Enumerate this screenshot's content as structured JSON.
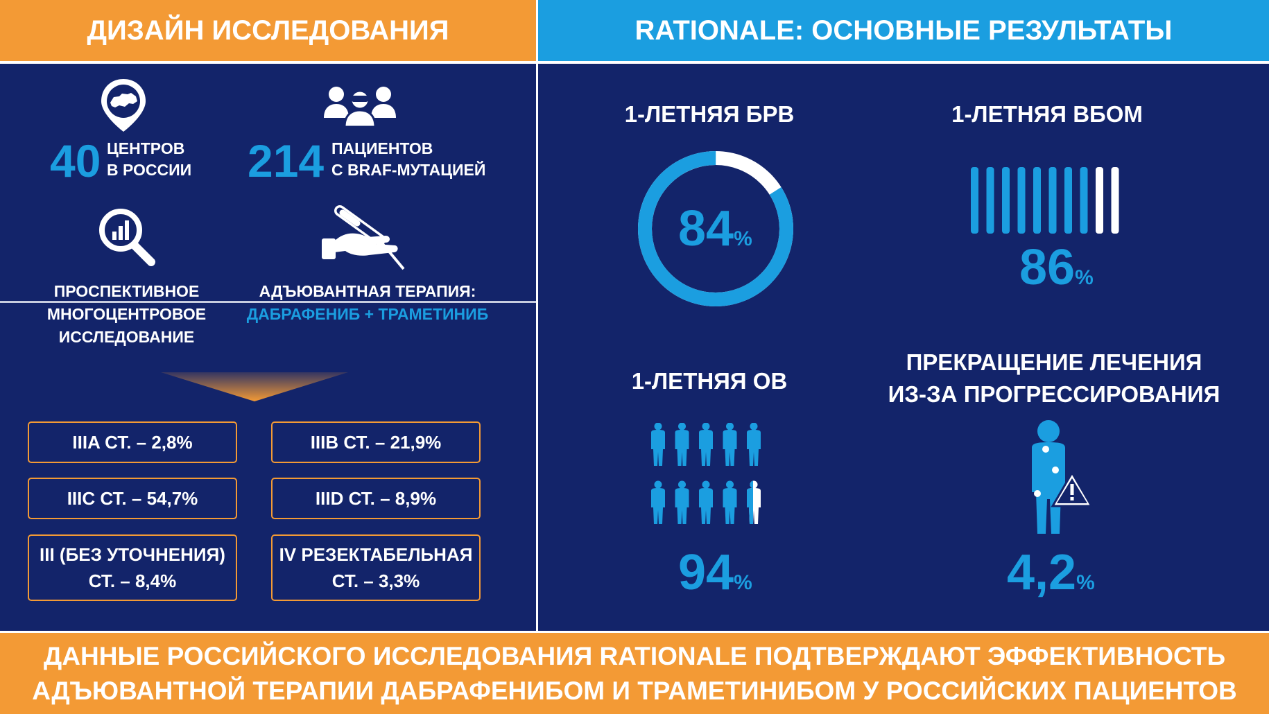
{
  "header": {
    "left_title": "ДИЗАЙН ИССЛЕДОВАНИЯ",
    "right_title": "RATIONALE: ОСНОВНЫЕ РЕЗУЛЬТАТЫ"
  },
  "design": {
    "centers": {
      "number": "40",
      "line1": "ЦЕНТРОВ",
      "line2": "В РОССИИ",
      "icon": "russia-map-pin-icon"
    },
    "patients": {
      "number": "214",
      "line1": "ПАЦИЕНТОВ",
      "line2": "С BRAF-МУТАЦИЕЙ",
      "icon": "doctors-group-icon"
    },
    "study": {
      "line1": "ПРОСПЕКТИВНОЕ",
      "line2": "МНОГОЦЕНТРОВОЕ",
      "line3": "ИССЛЕДОВАНИЕ",
      "icon": "magnifier-chart-icon"
    },
    "therapy": {
      "line1": "АДЪЮВАНТНАЯ ТЕРАПИЯ:",
      "line2": "ДАБРАФЕНИБ + ТРАМЕТИНИБ",
      "icon": "hand-pill-icon"
    }
  },
  "stages": [
    {
      "line1": "IIIA СТ. – 2,8%"
    },
    {
      "line1": "IIIB СТ. – 21,9%"
    },
    {
      "line1": "IIIC СТ. – 54,7%"
    },
    {
      "line1": "IIID СТ. – 8,9%"
    },
    {
      "line1": "III (БЕЗ УТОЧНЕНИЯ)",
      "line2": "СТ. – 8,4%"
    },
    {
      "line1": "IV РЕЗЕКТАБЕЛЬНАЯ",
      "line2": "СТ. – 3,3%"
    }
  ],
  "results": {
    "rfs": {
      "title": "1-ЛЕТНЯЯ БРВ",
      "value": "84",
      "unit": "%",
      "fraction": 0.84
    },
    "dmfs": {
      "title": "1-ЛЕТНЯЯ ВБОМ",
      "value": "86",
      "unit": "%",
      "bars_total": 10,
      "bars_filled": 8.6
    },
    "os": {
      "title": "1-ЛЕТНЯЯ ОВ",
      "value": "94",
      "unit": "%",
      "people_total": 10,
      "people_filled": 9.4
    },
    "stop": {
      "title_line1": "ПРЕКРАЩЕНИЕ ЛЕЧЕНИЯ",
      "title_line2": "ИЗ-ЗА ПРОГРЕССИРОВАНИЯ",
      "value": "4,2",
      "unit": "%",
      "icon": "patient-warning-icon"
    }
  },
  "footer": {
    "line1": "ДАННЫЕ РОССИЙСКОГО ИССЛЕДОВАНИЯ RATIONALE ПОДТВЕРЖДАЮТ ЭФФЕКТИВНОСТЬ",
    "line2": "АДЪЮВАНТНОЙ ТЕРАПИИ ДАБРАФЕНИБОМ И ТРАМЕТИНИБОМ У РОССИЙСКИХ ПАЦИЕНТОВ"
  },
  "colors": {
    "orange": "#f39a35",
    "blue": "#1b9ee0",
    "navy": "#13246a",
    "white": "#ffffff"
  }
}
